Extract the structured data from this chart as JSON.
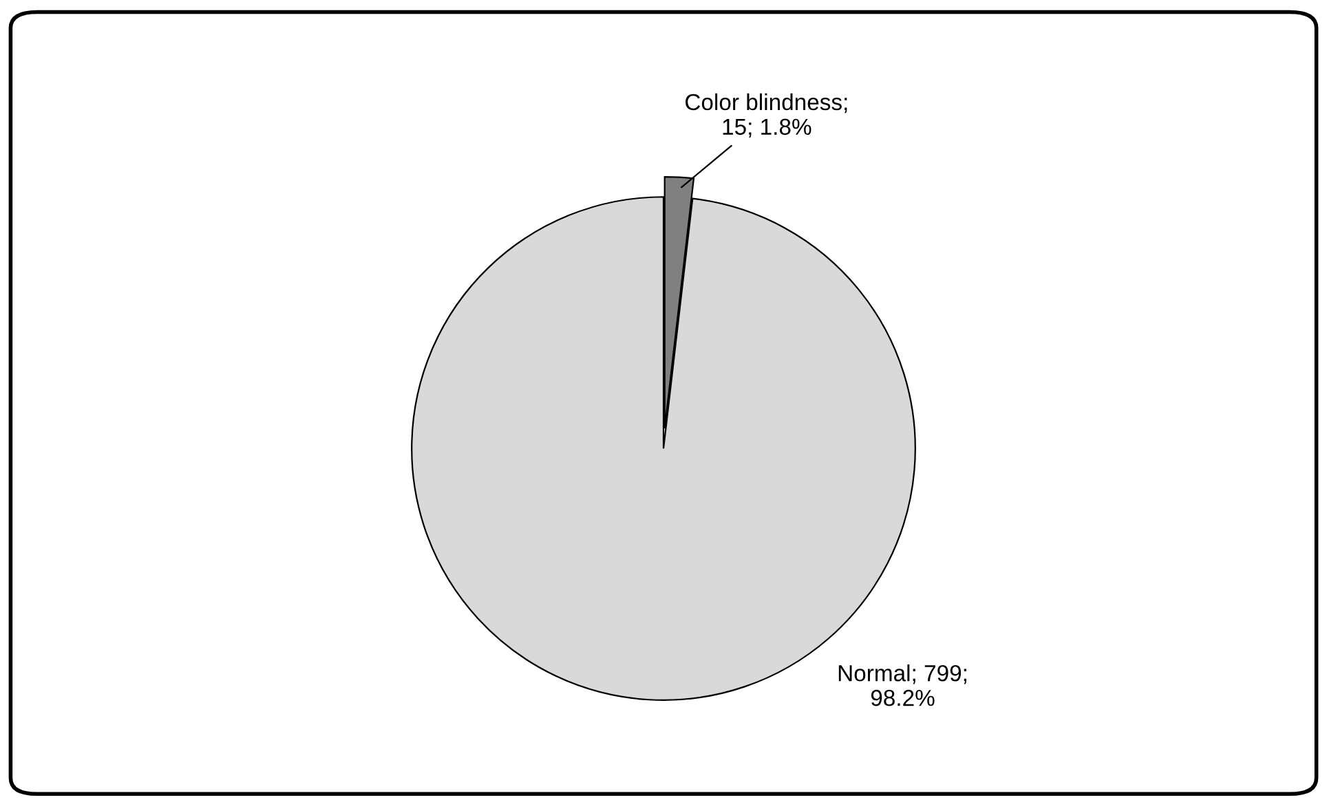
{
  "chart_data": {
    "type": "pie",
    "categories": [
      "Color blindness",
      "Normal"
    ],
    "values": [
      15,
      799
    ],
    "colors": [
      "#808080",
      "#d9d9d9"
    ],
    "value_labels": [
      ";\n15; 1.8%",
      "; 799;\n98.2%"
    ]
  }
}
